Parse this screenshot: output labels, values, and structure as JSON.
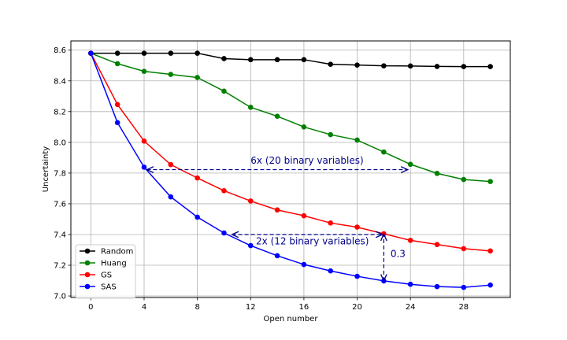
{
  "chart_data": {
    "type": "line",
    "title": "",
    "xlabel": "Open number",
    "ylabel": "Uncertainty",
    "xlim": [
      -1.5,
      31.5
    ],
    "ylim": [
      6.99,
      8.66
    ],
    "xticks": [
      0,
      4,
      8,
      12,
      16,
      20,
      24,
      28
    ],
    "yticks": [
      7.0,
      7.2,
      7.4,
      7.6,
      7.8,
      8.0,
      8.2,
      8.4,
      8.6
    ],
    "x": [
      0,
      2,
      4,
      6,
      8,
      10,
      12,
      14,
      16,
      18,
      20,
      22,
      24,
      26,
      28,
      30
    ],
    "grid": true,
    "legend": "lower-left",
    "series": [
      {
        "name": "Random",
        "color": "#000000",
        "values": [
          8.58,
          8.58,
          8.58,
          8.58,
          8.58,
          8.545,
          8.538,
          8.538,
          8.538,
          8.508,
          8.503,
          8.498,
          8.497,
          8.494,
          8.493,
          8.493
        ]
      },
      {
        "name": "Huang",
        "color": "#008000",
        "values": [
          8.58,
          8.512,
          8.462,
          8.442,
          8.422,
          8.333,
          8.228,
          8.17,
          8.1,
          8.05,
          8.015,
          7.937,
          7.857,
          7.798,
          7.758,
          7.745
        ]
      },
      {
        "name": "GS",
        "color": "#ff0000",
        "values": [
          8.58,
          8.246,
          8.008,
          7.855,
          7.768,
          7.685,
          7.618,
          7.56,
          7.522,
          7.475,
          7.448,
          7.405,
          7.362,
          7.335,
          7.308,
          7.293
        ]
      },
      {
        "name": "SAS",
        "color": "#0000ff",
        "values": [
          8.58,
          8.128,
          7.838,
          7.645,
          7.513,
          7.41,
          7.328,
          7.262,
          7.205,
          7.163,
          7.128,
          7.098,
          7.076,
          7.061,
          7.056,
          7.071
        ]
      }
    ],
    "annotations": [
      {
        "text": "6x (20 binary variables)",
        "from": [
          4.2,
          7.822
        ],
        "to": [
          23.8,
          7.822
        ],
        "label_at": [
          12,
          7.86
        ]
      },
      {
        "text": "2x (12 binary variables)",
        "from": [
          10.6,
          7.4
        ],
        "to": [
          21.9,
          7.4
        ],
        "label_at": [
          12.4,
          7.335
        ]
      },
      {
        "text": "0.3",
        "from": [
          22,
          7.098
        ],
        "to": [
          22,
          7.403
        ],
        "label_at": [
          22.5,
          7.255
        ]
      }
    ],
    "annotation_color": "#00008b"
  }
}
